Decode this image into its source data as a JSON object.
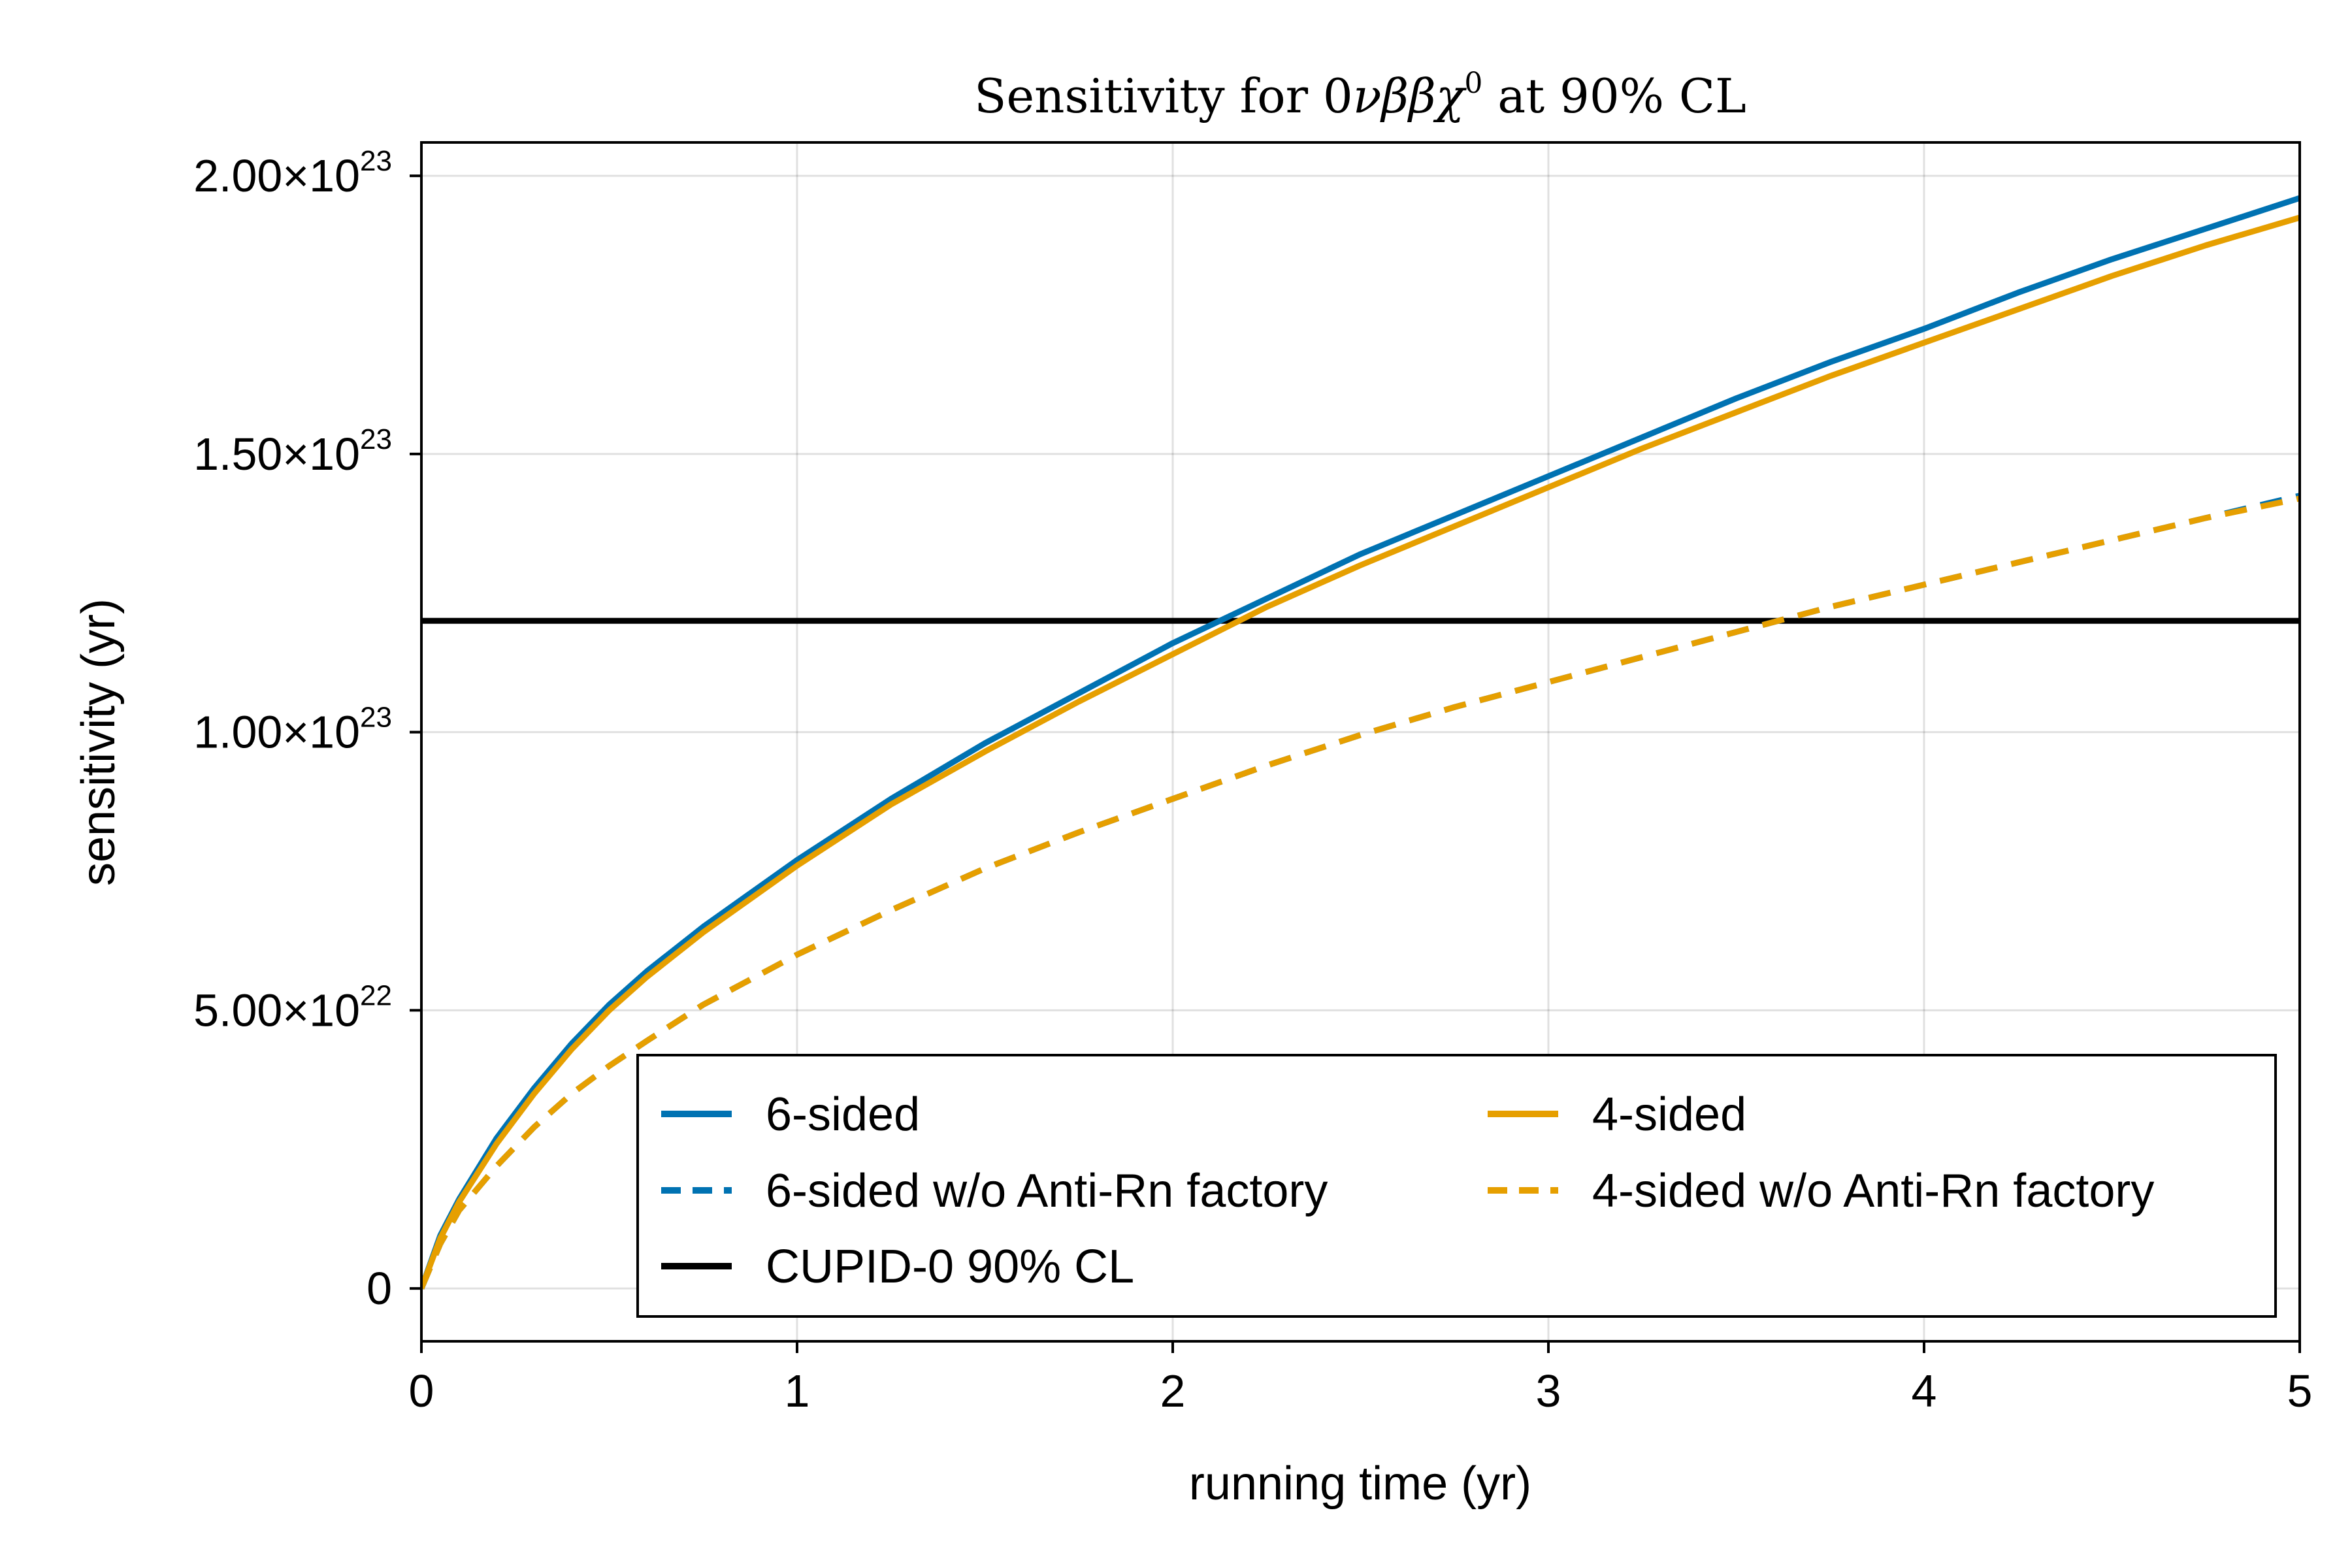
{
  "chart_data": {
    "type": "line",
    "title": "Sensitivity for 0νββχ⁰ at 90% CL",
    "title_parts": [
      "Sensitivity for 0",
      "νββχ",
      "0",
      " at 90% CL"
    ],
    "xlabel": "running time (yr)",
    "ylabel": "sensitivity (yr)",
    "xlim": [
      0,
      5
    ],
    "ylim": [
      -9.5e+21,
      2.06e+23
    ],
    "xticks": [
      0,
      1,
      2,
      3,
      4,
      5
    ],
    "xtick_labels": [
      "0",
      "1",
      "2",
      "3",
      "4",
      "5"
    ],
    "yticks": [
      0,
      5e+22,
      1e+23,
      1.5e+23,
      2e+23
    ],
    "ytick_labels": [
      {
        "mantissa": "0",
        "exp": ""
      },
      {
        "mantissa": "5.00×10",
        "exp": "22"
      },
      {
        "mantissa": "1.00×10",
        "exp": "23"
      },
      {
        "mantissa": "1.50×10",
        "exp": "23"
      },
      {
        "mantissa": "2.00×10",
        "exp": "23"
      }
    ],
    "grid": true,
    "legend_position": "bottom-right",
    "x": [
      0,
      0.05,
      0.1,
      0.2,
      0.3,
      0.4,
      0.5,
      0.6,
      0.75,
      1.0,
      1.25,
      1.5,
      1.75,
      2.0,
      2.25,
      2.5,
      2.75,
      3.0,
      3.25,
      3.5,
      3.75,
      4.0,
      4.25,
      4.5,
      4.75,
      5.0
    ],
    "series": [
      {
        "name": "6-sided",
        "color": "#0072b2",
        "dash": "solid",
        "values": [
          0,
          9.5e+21,
          1.6e+22,
          2.7e+22,
          3.6e+22,
          4.4e+22,
          5.1e+22,
          5.7e+22,
          6.5e+22,
          7.7e+22,
          8.8e+22,
          9.8e+22,
          1.07e+23,
          1.16e+23,
          1.24e+23,
          1.32e+23,
          1.39e+23,
          1.46e+23,
          1.53e+23,
          1.6e+23,
          1.665e+23,
          1.725e+23,
          1.79e+23,
          1.85e+23,
          1.905e+23,
          1.96e+23
        ]
      },
      {
        "name": "6-sided w/o Anti-Rn factory",
        "color": "#0072b2",
        "dash": "dashed",
        "values": [
          0,
          8e+21,
          1.4e+22,
          2.2e+22,
          2.9e+22,
          3.5e+22,
          4e+22,
          4.45e+22,
          5.1e+22,
          6e+22,
          6.8e+22,
          7.55e+22,
          8.2e+22,
          8.8e+22,
          9.4e+22,
          9.95e+22,
          1.045e+23,
          1.09e+23,
          1.135e+23,
          1.18e+23,
          1.225e+23,
          1.265e+23,
          1.305e+23,
          1.345e+23,
          1.385e+23,
          1.425e+23
        ]
      },
      {
        "name": "CUPID-0 90% CL",
        "color": "#000000",
        "dash": "solid",
        "values": [
          1.2e+23,
          1.2e+23,
          1.2e+23,
          1.2e+23,
          1.2e+23,
          1.2e+23,
          1.2e+23,
          1.2e+23,
          1.2e+23,
          1.2e+23,
          1.2e+23,
          1.2e+23,
          1.2e+23,
          1.2e+23,
          1.2e+23,
          1.2e+23,
          1.2e+23,
          1.2e+23,
          1.2e+23,
          1.2e+23,
          1.2e+23,
          1.2e+23,
          1.2e+23,
          1.2e+23,
          1.2e+23,
          1.2e+23
        ]
      },
      {
        "name": "4-sided",
        "color": "#e69f00",
        "dash": "solid",
        "values": [
          0,
          9e+21,
          1.55e+22,
          2.6e+22,
          3.5e+22,
          4.3e+22,
          5e+22,
          5.6e+22,
          6.4e+22,
          7.6e+22,
          8.7e+22,
          9.65e+22,
          1.055e+23,
          1.14e+23,
          1.225e+23,
          1.3e+23,
          1.37e+23,
          1.44e+23,
          1.51e+23,
          1.575e+23,
          1.64e+23,
          1.7e+23,
          1.76e+23,
          1.82e+23,
          1.875e+23,
          1.925e+23
        ]
      },
      {
        "name": "4-sided w/o Anti-Rn factory",
        "color": "#e69f00",
        "dash": "dashed",
        "values": [
          0,
          8e+21,
          1.4e+22,
          2.2e+22,
          2.9e+22,
          3.5e+22,
          4e+22,
          4.45e+22,
          5.1e+22,
          6e+22,
          6.8e+22,
          7.55e+22,
          8.2e+22,
          8.8e+22,
          9.4e+22,
          9.95e+22,
          1.045e+23,
          1.09e+23,
          1.135e+23,
          1.18e+23,
          1.225e+23,
          1.265e+23,
          1.305e+23,
          1.345e+23,
          1.385e+23,
          1.42e+23
        ]
      }
    ],
    "legend_order": [
      0,
      3,
      1,
      4,
      2
    ]
  }
}
